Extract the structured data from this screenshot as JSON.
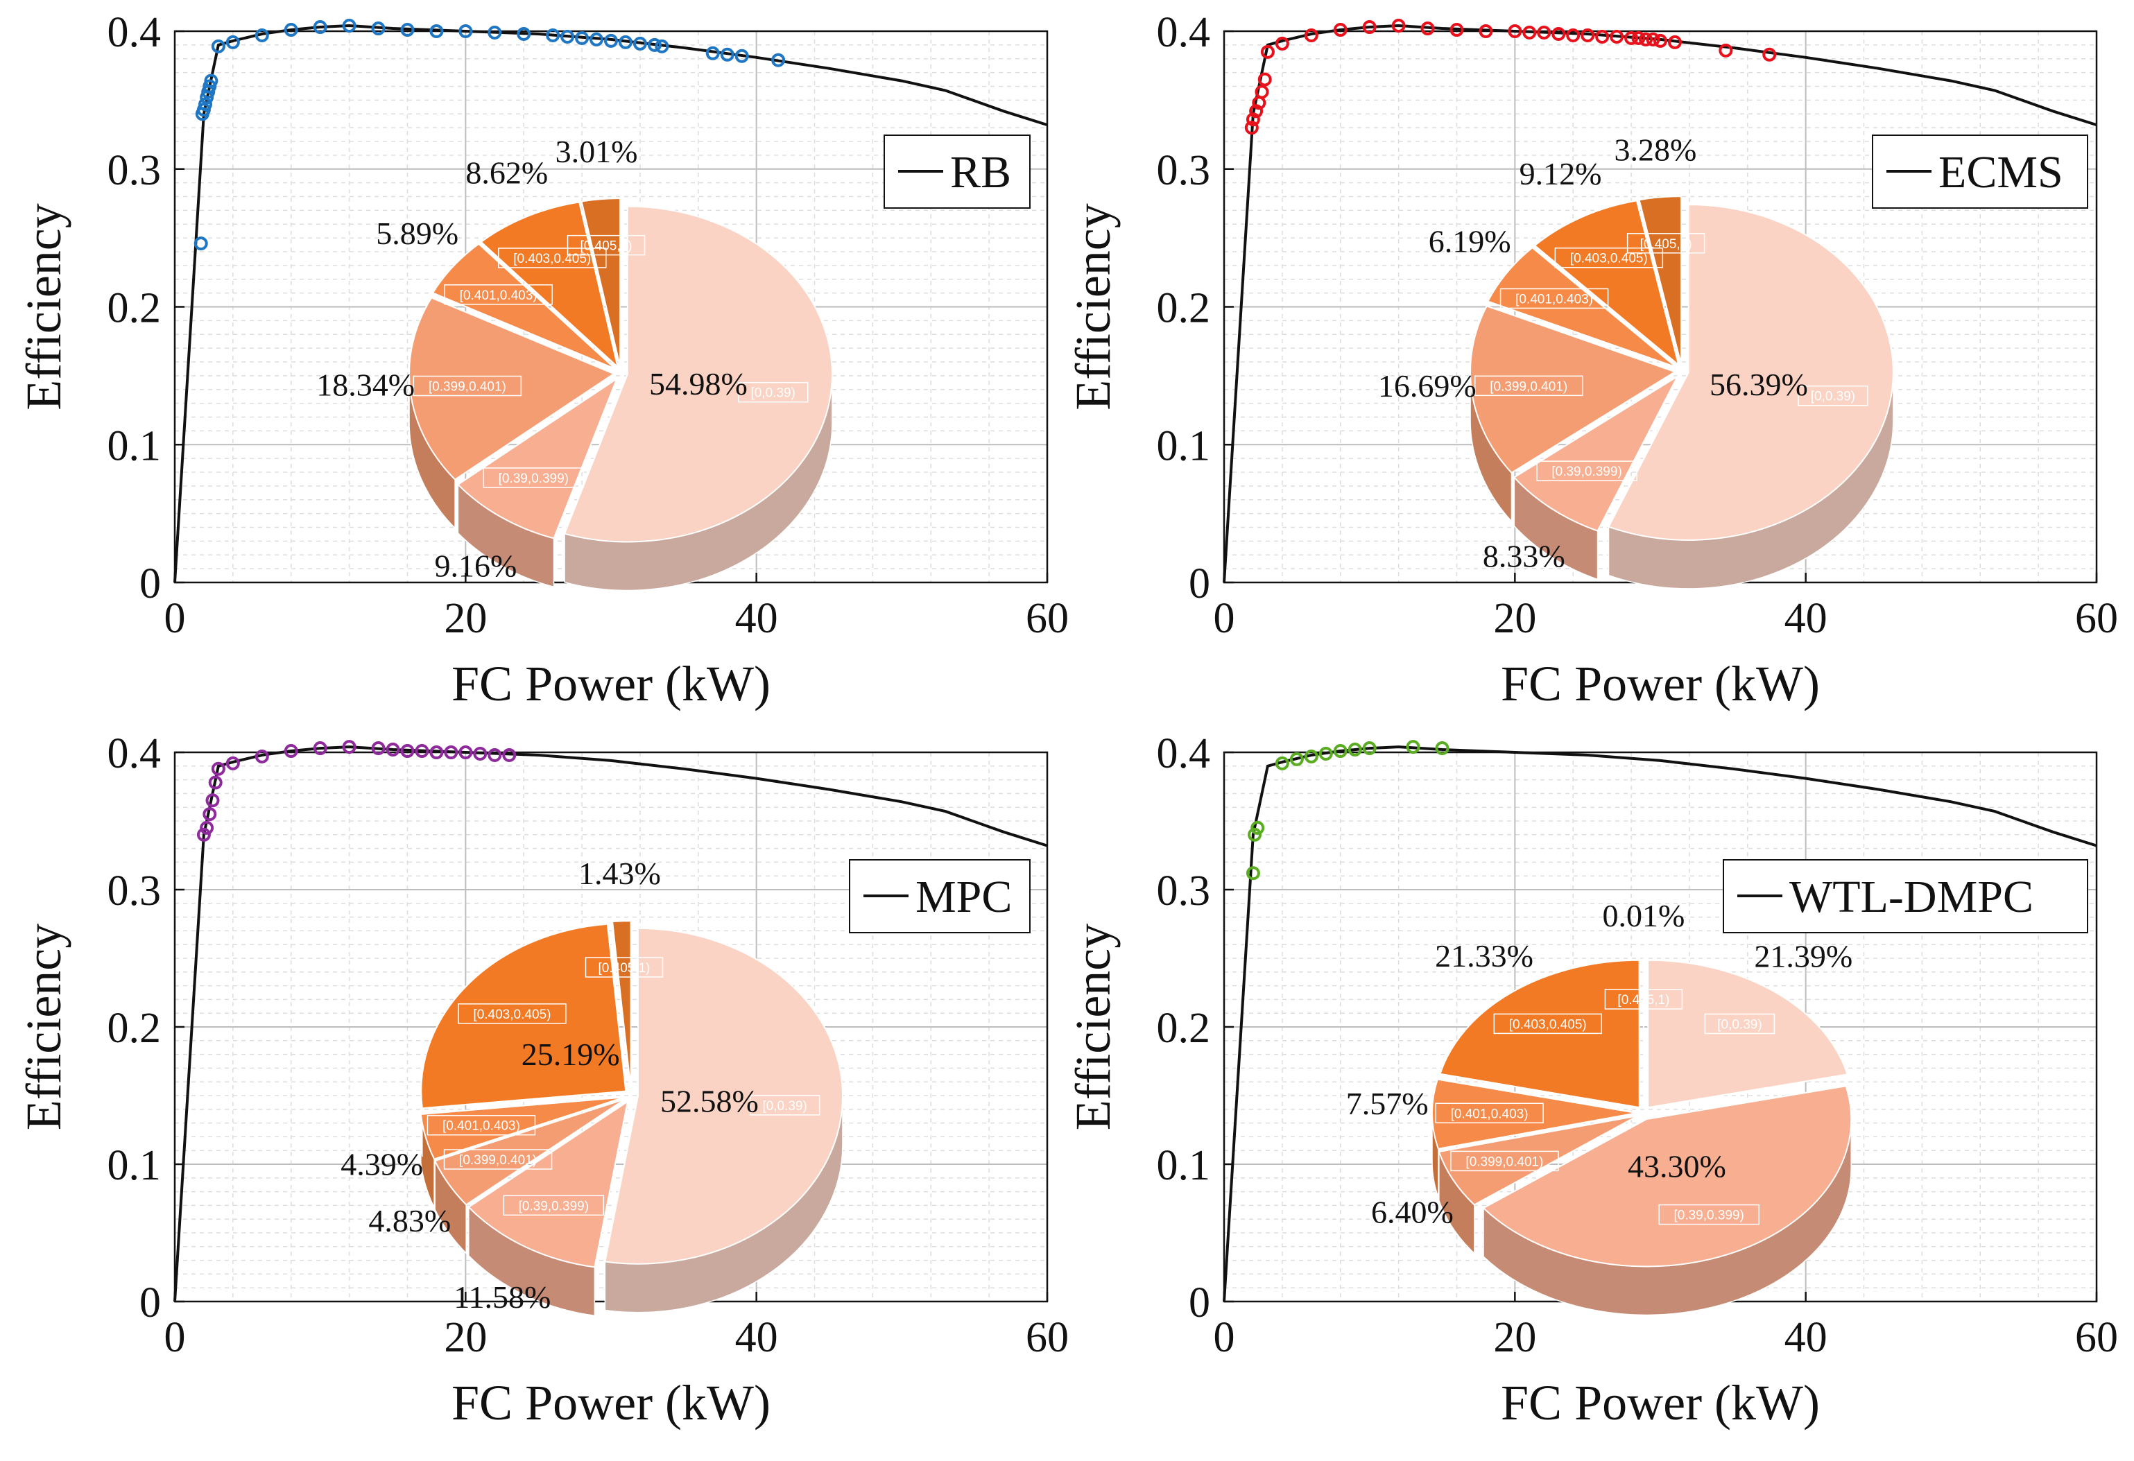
{
  "figure": {
    "colors": {
      "line": "#111111",
      "grid_major": "#bdbdbd",
      "grid_minor": "#dddddd",
      "slice_palette": [
        "#fbd3c4",
        "#f7ae91",
        "#f59d72",
        "#f58a49",
        "#f27a24",
        "#d86f22"
      ],
      "slice_edge": "#ffffff"
    }
  },
  "chart_data": [
    {
      "type": "scatter",
      "legend": "RB",
      "xlabel": "FC Power (kW)",
      "ylabel": "Efficiency",
      "xlim": [
        0,
        60
      ],
      "ylim": [
        0,
        0.4
      ],
      "xticks": [
        "0",
        "20",
        "40",
        "60"
      ],
      "yticks": [
        "0",
        "0.1",
        "0.2",
        "0.3",
        "0.4"
      ],
      "marker_color": "#1f77c4",
      "curve": {
        "x": [
          0,
          2,
          3,
          4,
          6,
          8,
          10,
          12,
          15,
          20,
          25,
          30,
          35,
          40,
          45,
          50,
          53,
          57,
          60
        ],
        "y": [
          0,
          0.34,
          0.39,
          0.393,
          0.398,
          0.401,
          0.403,
          0.404,
          0.402,
          0.4,
          0.398,
          0.394,
          0.388,
          0.381,
          0.373,
          0.364,
          0.357,
          0.342,
          0.332
        ]
      },
      "points": {
        "x": [
          1.8,
          1.9,
          2.0,
          2.1,
          2.2,
          2.3,
          2.4,
          2.5,
          3,
          4,
          6,
          8,
          10,
          12,
          14,
          16,
          18,
          20,
          22,
          24,
          26,
          27,
          28,
          29,
          30,
          31,
          32,
          33,
          33.5,
          37,
          38,
          39,
          41.5
        ],
        "y": [
          0.246,
          0.34,
          0.343,
          0.347,
          0.352,
          0.356,
          0.36,
          0.364,
          0.389,
          0.392,
          0.397,
          0.401,
          0.403,
          0.404,
          0.402,
          0.401,
          0.4,
          0.4,
          0.399,
          0.398,
          0.397,
          0.396,
          0.395,
          0.394,
          0.393,
          0.392,
          0.391,
          0.39,
          0.389,
          0.384,
          0.383,
          0.382,
          0.379
        ]
      },
      "pie": {
        "slices": [
          {
            "range": "[0,0.39)",
            "pct": "54.98%",
            "value": 54.98
          },
          {
            "range": "[0.39,0.399)",
            "pct": "9.16%",
            "value": 9.16
          },
          {
            "range": "[0.399,0.401)",
            "pct": "18.34%",
            "value": 18.34
          },
          {
            "range": "[0.401,0.403)",
            "pct": "5.89%",
            "value": 5.89
          },
          {
            "range": "[0.403,0.405)",
            "pct": "8.62%",
            "value": 8.62
          },
          {
            "range": "[0.405,1)",
            "pct": "3.01%",
            "value": 3.01
          }
        ]
      }
    },
    {
      "type": "scatter",
      "legend": "ECMS",
      "xlabel": "FC Power (kW)",
      "ylabel": "Efficiency",
      "xlim": [
        0,
        60
      ],
      "ylim": [
        0,
        0.4
      ],
      "xticks": [
        "0",
        "20",
        "40",
        "60"
      ],
      "yticks": [
        "0",
        "0.1",
        "0.2",
        "0.3",
        "0.4"
      ],
      "marker_color": "#e8111b",
      "curve": {
        "x": [
          0,
          2,
          3,
          4,
          6,
          8,
          10,
          12,
          15,
          20,
          25,
          30,
          35,
          40,
          45,
          50,
          53,
          57,
          60
        ],
        "y": [
          0,
          0.34,
          0.39,
          0.393,
          0.398,
          0.401,
          0.403,
          0.404,
          0.402,
          0.4,
          0.398,
          0.394,
          0.388,
          0.381,
          0.373,
          0.364,
          0.357,
          0.342,
          0.332
        ]
      },
      "points": {
        "x": [
          1.9,
          2.0,
          2.2,
          2.4,
          2.6,
          2.8,
          3.0,
          4,
          6,
          8,
          10,
          12,
          14,
          16,
          18,
          20,
          21,
          22,
          23,
          24,
          25,
          26,
          27,
          28,
          28.5,
          29,
          29.5,
          30,
          31,
          34.5,
          37.5
        ],
        "y": [
          0.33,
          0.336,
          0.342,
          0.348,
          0.356,
          0.365,
          0.385,
          0.391,
          0.397,
          0.401,
          0.403,
          0.404,
          0.402,
          0.401,
          0.4,
          0.4,
          0.399,
          0.399,
          0.398,
          0.397,
          0.397,
          0.396,
          0.396,
          0.395,
          0.395,
          0.394,
          0.394,
          0.393,
          0.392,
          0.386,
          0.383
        ]
      },
      "pie": {
        "slices": [
          {
            "range": "[0,0.39)",
            "pct": "56.39%",
            "value": 56.39
          },
          {
            "range": "[0.39,0.399)",
            "pct": "8.33%",
            "value": 8.33
          },
          {
            "range": "[0.399,0.401)",
            "pct": "16.69%",
            "value": 16.69
          },
          {
            "range": "[0.401,0.403)",
            "pct": "6.19%",
            "value": 6.19
          },
          {
            "range": "[0.403,0.405)",
            "pct": "9.12%",
            "value": 9.12
          },
          {
            "range": "[0.405,1)",
            "pct": "3.28%",
            "value": 3.28
          }
        ]
      }
    },
    {
      "type": "scatter",
      "legend": "MPC",
      "xlabel": "FC Power (kW)",
      "ylabel": "Efficiency",
      "xlim": [
        0,
        60
      ],
      "ylim": [
        0,
        0.4
      ],
      "xticks": [
        "0",
        "20",
        "40",
        "60"
      ],
      "yticks": [
        "0",
        "0.1",
        "0.2",
        "0.3",
        "0.4"
      ],
      "marker_color": "#8e2a9c",
      "curve": {
        "x": [
          0,
          2,
          3,
          4,
          6,
          8,
          10,
          12,
          15,
          20,
          25,
          30,
          35,
          40,
          45,
          50,
          53,
          57,
          60
        ],
        "y": [
          0,
          0.34,
          0.39,
          0.393,
          0.398,
          0.401,
          0.403,
          0.404,
          0.402,
          0.4,
          0.398,
          0.394,
          0.388,
          0.381,
          0.373,
          0.364,
          0.357,
          0.342,
          0.332
        ]
      },
      "points": {
        "x": [
          2.0,
          2.2,
          2.4,
          2.6,
          2.8,
          3.0,
          4,
          6,
          8,
          10,
          12,
          14,
          15,
          16,
          17,
          18,
          19,
          20,
          21,
          22,
          23
        ],
        "y": [
          0.34,
          0.345,
          0.355,
          0.365,
          0.378,
          0.388,
          0.392,
          0.397,
          0.401,
          0.403,
          0.404,
          0.403,
          0.402,
          0.401,
          0.401,
          0.4,
          0.4,
          0.4,
          0.399,
          0.398,
          0.398
        ]
      },
      "pie": {
        "slices": [
          {
            "range": "[0,0.39)",
            "pct": "52.58%",
            "value": 52.58
          },
          {
            "range": "[0.39,0.399)",
            "pct": "11.58%",
            "value": 11.58
          },
          {
            "range": "[0.399,0.401)",
            "pct": "4.83%",
            "value": 4.83
          },
          {
            "range": "[0.401,0.403)",
            "pct": "4.39%",
            "value": 4.39
          },
          {
            "range": "[0.403,0.405)",
            "pct": "25.19%",
            "value": 25.19
          },
          {
            "range": "[0.405,1)",
            "pct": "1.43%",
            "value": 1.43
          }
        ]
      }
    },
    {
      "type": "scatter",
      "legend": "WTL-DMPC",
      "xlabel": "FC Power (kW)",
      "ylabel": "Efficiency",
      "xlim": [
        0,
        60
      ],
      "ylim": [
        0,
        0.4
      ],
      "xticks": [
        "0",
        "20",
        "40",
        "60"
      ],
      "yticks": [
        "0",
        "0.1",
        "0.2",
        "0.3",
        "0.4"
      ],
      "marker_color": "#5aac21",
      "curve": {
        "x": [
          0,
          2,
          3,
          4,
          6,
          8,
          10,
          12,
          15,
          20,
          25,
          30,
          35,
          40,
          45,
          50,
          53,
          57,
          60
        ],
        "y": [
          0,
          0.34,
          0.39,
          0.393,
          0.398,
          0.401,
          0.403,
          0.404,
          0.402,
          0.4,
          0.398,
          0.394,
          0.388,
          0.381,
          0.373,
          0.364,
          0.357,
          0.342,
          0.332
        ]
      },
      "points": {
        "x": [
          2.0,
          2.1,
          2.3,
          4,
          5,
          6,
          7,
          8,
          9,
          10,
          13,
          15
        ],
        "y": [
          0.312,
          0.34,
          0.345,
          0.392,
          0.395,
          0.397,
          0.399,
          0.401,
          0.402,
          0.403,
          0.404,
          0.403
        ]
      },
      "pie": {
        "slices": [
          {
            "range": "[0,0.39)",
            "pct": "21.39%",
            "value": 21.39
          },
          {
            "range": "[0.39,0.399)",
            "pct": "43.30%",
            "value": 43.3
          },
          {
            "range": "[0.399,0.401)",
            "pct": "6.40%",
            "value": 6.4
          },
          {
            "range": "[0.401,0.403)",
            "pct": "7.57%",
            "value": 7.57
          },
          {
            "range": "[0.403,0.405)",
            "pct": "21.33%",
            "value": 21.33
          },
          {
            "range": "[0.405,1)",
            "pct": "0.01%",
            "value": 0.01
          }
        ]
      }
    }
  ]
}
